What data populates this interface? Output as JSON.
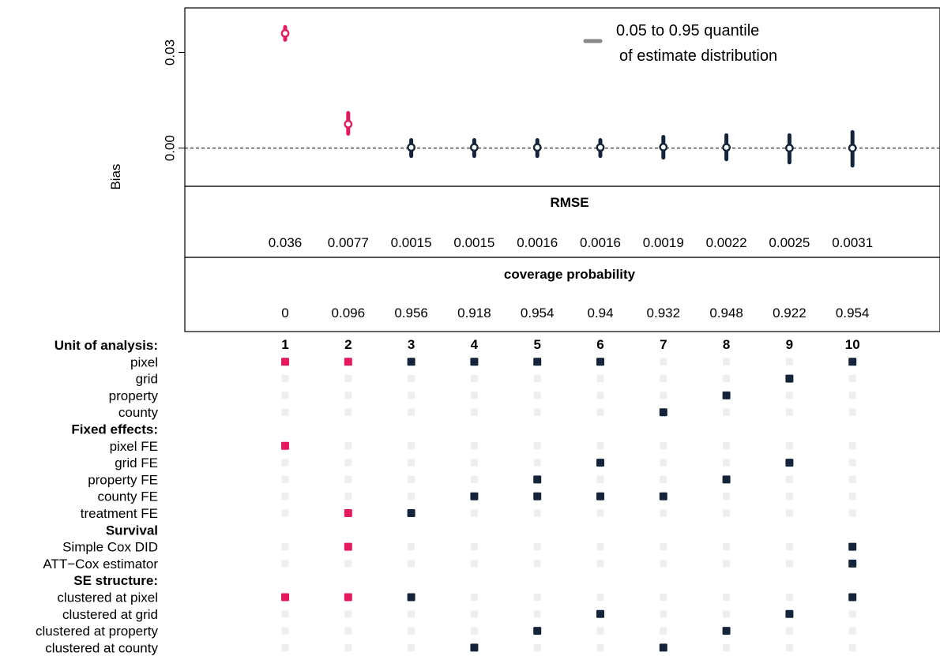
{
  "chart_data": {
    "type": "scatter",
    "title": "",
    "ylabel": "Bias",
    "ylim": [
      -0.012,
      0.044
    ],
    "yticks": [
      "0.00",
      "0.03"
    ],
    "reference_line": 0,
    "legend": {
      "placement": "top-right",
      "lines": [
        "0.05 to 0.95 quantile",
        "of estimate distribution"
      ],
      "color": "#888888"
    },
    "colors": {
      "highlight": "#e31a5c",
      "default": "#14253a",
      "inactive": "#eeeeee"
    },
    "specifications": [
      "1",
      "2",
      "3",
      "4",
      "5",
      "6",
      "7",
      "8",
      "9",
      "10"
    ],
    "highlight_flags": [
      true,
      true,
      false,
      false,
      false,
      false,
      false,
      false,
      false,
      false
    ],
    "bias": [
      0.036,
      0.0075,
      0.0002,
      0.0002,
      0.0002,
      0.0002,
      0.0003,
      0.0002,
      0.0,
      0.0
    ],
    "q05": [
      0.034,
      0.0045,
      -0.0025,
      -0.0025,
      -0.0025,
      -0.0025,
      -0.003,
      -0.0035,
      -0.0045,
      -0.0055
    ],
    "q95": [
      0.038,
      0.011,
      0.0025,
      0.0025,
      0.0025,
      0.0025,
      0.0035,
      0.004,
      0.004,
      0.005
    ],
    "panels": [
      {
        "title": "RMSE",
        "values": [
          "0.036",
          "0.0077",
          "0.0015",
          "0.0015",
          "0.0016",
          "0.0016",
          "0.0019",
          "0.0022",
          "0.0025",
          "0.0031"
        ]
      },
      {
        "title": "coverage probability",
        "values": [
          "0",
          "0.096",
          "0.956",
          "0.918",
          "0.954",
          "0.94",
          "0.932",
          "0.948",
          "0.922",
          "0.954"
        ]
      }
    ],
    "spec_rows": [
      {
        "label": "Unit of analysis:",
        "group": true
      },
      {
        "label": "pixel",
        "group": false,
        "active": [
          1,
          2,
          3,
          4,
          5,
          6,
          10
        ]
      },
      {
        "label": "grid",
        "group": false,
        "active": [
          9
        ]
      },
      {
        "label": "property",
        "group": false,
        "active": [
          8
        ]
      },
      {
        "label": "county",
        "group": false,
        "active": [
          7
        ]
      },
      {
        "label": "Fixed effects:",
        "group": true
      },
      {
        "label": "pixel FE",
        "group": false,
        "active": [
          1
        ]
      },
      {
        "label": "grid FE",
        "group": false,
        "active": [
          6,
          9
        ]
      },
      {
        "label": "property FE",
        "group": false,
        "active": [
          5,
          8
        ]
      },
      {
        "label": "county FE",
        "group": false,
        "active": [
          4,
          5,
          6,
          7
        ]
      },
      {
        "label": "treatment FE",
        "group": false,
        "active": [
          2,
          3
        ]
      },
      {
        "label": "Survival",
        "group": true
      },
      {
        "label": "Simple Cox DID",
        "group": false,
        "active": [
          2,
          10
        ]
      },
      {
        "label": "ATT−Cox estimator",
        "group": false,
        "active": [
          10
        ]
      },
      {
        "label": "SE structure:",
        "group": true
      },
      {
        "label": "clustered at pixel",
        "group": false,
        "active": [
          1,
          2,
          3,
          10
        ]
      },
      {
        "label": "clustered at grid",
        "group": false,
        "active": [
          6,
          9
        ]
      },
      {
        "label": "clustered at property",
        "group": false,
        "active": [
          5,
          8
        ]
      },
      {
        "label": "clustered at county",
        "group": false,
        "active": [
          4,
          7
        ]
      }
    ]
  }
}
